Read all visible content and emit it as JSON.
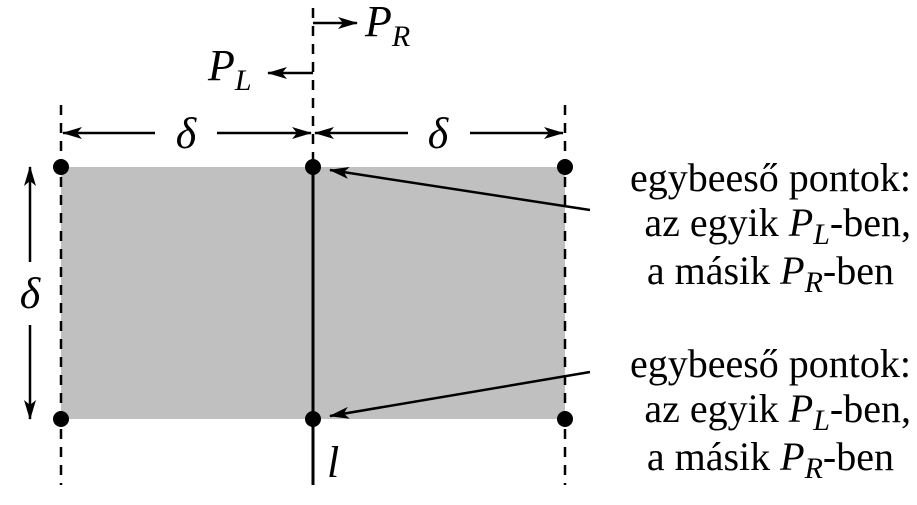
{
  "labels": {
    "delta_symbol": "δ",
    "p_letter": "P",
    "sub_L": "L",
    "sub_R": "R",
    "line_label": "l"
  },
  "annotations": [
    {
      "line1": "egybeeső pontok:",
      "line2_prefix": "az egyik ",
      "line2_suffix": "-ben,",
      "line3_prefix": "a másik ",
      "line3_suffix": "-ben"
    },
    {
      "line1": "egybeeső pontok:",
      "line2_prefix": "az egyik ",
      "line2_suffix": "-ben,",
      "line3_prefix": "a másik ",
      "line3_suffix": "-ben"
    }
  ],
  "colors": {
    "region_fill": "#c0c0c0",
    "ink": "#000000",
    "background": "#ffffff"
  }
}
